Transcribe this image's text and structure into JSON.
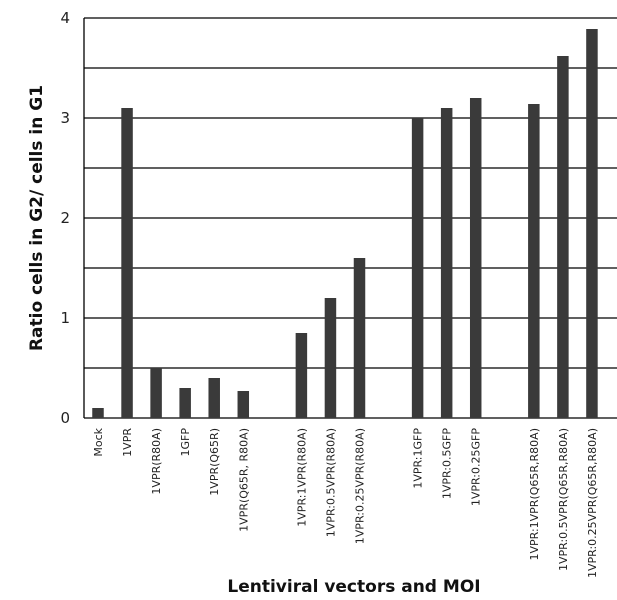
{
  "chart_data": {
    "type": "bar",
    "title": "",
    "xlabel": "Lentiviral vectors and MOI",
    "ylabel": "Ratio cells in G2/ cells in G1",
    "ylim": [
      0,
      4
    ],
    "yticks": [
      "0",
      "1",
      "2",
      "3",
      "4"
    ],
    "grid": true,
    "bar_color": "#3a3a3a",
    "categories": [
      "Mock",
      "1VPR",
      "1VPR(R80A)",
      "1GFP",
      "1VPR(Q65R)",
      "1VPR(Q65R, R80A)",
      "",
      "1VPR:1VPR(R80A)",
      "1VPR:0.5VPR(R80A)",
      "1VPR:0.25VPR(R80A)",
      "",
      "1VPR:1GFP",
      "1VPR:0.5GFP",
      "1VPR:0.25GFP",
      "",
      "1VPR:1VPR(Q65R,R80A)",
      "1VPR:0.5VPR(Q65R,R80A)",
      "1VPR:0.25VPR(Q65R,R80A)"
    ],
    "values": [
      0.1,
      3.1,
      0.5,
      0.3,
      0.4,
      0.27,
      null,
      0.85,
      1.2,
      1.6,
      null,
      3.0,
      3.1,
      3.2,
      null,
      3.14,
      3.62,
      3.89
    ]
  }
}
